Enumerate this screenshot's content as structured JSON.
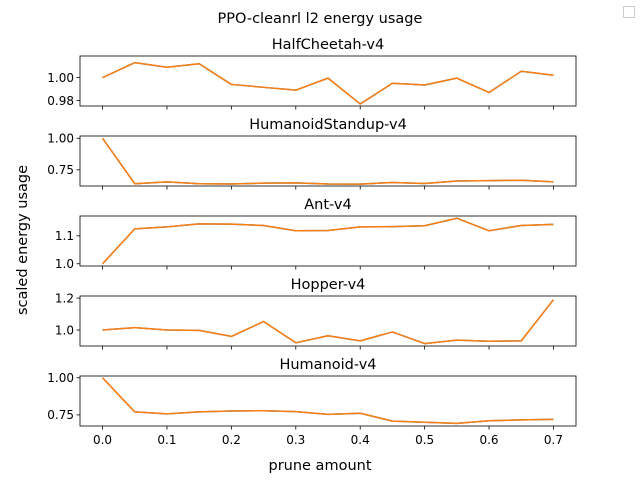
{
  "chart_data": {
    "type": "line",
    "suptitle": "PPO-cleanrl l2 energy usage",
    "xlabel": "prune amount",
    "ylabel": "scaled energy usage",
    "xlim": [
      -0.035,
      0.735
    ],
    "xticks": [
      0.0,
      0.1,
      0.2,
      0.3,
      0.4,
      0.5,
      0.6,
      0.7
    ],
    "xtick_labels": [
      "0.0",
      "0.1",
      "0.2",
      "0.3",
      "0.4",
      "0.5",
      "0.6",
      "0.7"
    ],
    "line_colors": [
      "#1f77b4",
      "#ff7f0e"
    ],
    "legend": "empty box, top-right",
    "x": [
      0.0,
      0.05,
      0.1,
      0.15,
      0.2,
      0.25,
      0.3,
      0.35,
      0.4,
      0.45,
      0.5,
      0.55,
      0.6,
      0.65,
      0.7
    ],
    "subplots": [
      {
        "title": "HalfCheetah-v4",
        "ylim": [
          0.9752,
          1.0188
        ],
        "yticks": [
          0.98,
          1.0
        ],
        "ytick_labels": [
          "0.98",
          "1.00"
        ],
        "values": [
          1.0,
          1.013,
          1.009,
          1.012,
          0.994,
          0.9915,
          0.989,
          0.9995,
          0.977,
          0.995,
          0.9935,
          0.9995,
          0.987,
          1.0055,
          1.002
        ]
      },
      {
        "title": "HumanoidStandup-v4",
        "ylim": [
          0.622,
          1.018
        ],
        "yticks": [
          0.75,
          1.0
        ],
        "ytick_labels": [
          "0.75",
          "1.00"
        ],
        "values": [
          1.0,
          0.64,
          0.655,
          0.64,
          0.638,
          0.645,
          0.647,
          0.638,
          0.637,
          0.65,
          0.642,
          0.662,
          0.665,
          0.668,
          0.655
        ]
      },
      {
        "title": "Ant-v4",
        "ylim": [
          0.992,
          1.171
        ],
        "yticks": [
          1.0,
          1.1
        ],
        "ytick_labels": [
          "1.0",
          "1.1"
        ],
        "values": [
          1.0,
          1.125,
          1.132,
          1.143,
          1.142,
          1.137,
          1.118,
          1.119,
          1.132,
          1.133,
          1.136,
          1.163,
          1.118,
          1.137,
          1.141
        ]
      },
      {
        "title": "Hopper-v4",
        "ylim": [
          0.9,
          1.213
        ],
        "yticks": [
          1.0,
          1.2
        ],
        "ytick_labels": [
          "1.0",
          "1.2"
        ],
        "values": [
          1.0,
          1.015,
          1.0,
          0.998,
          0.96,
          1.053,
          0.92,
          0.964,
          0.932,
          0.988,
          0.915,
          0.937,
          0.93,
          0.932,
          1.19
        ]
      },
      {
        "title": "Humanoid-v4",
        "ylim": [
          0.675,
          1.012
        ],
        "yticks": [
          0.75,
          1.0
        ],
        "ytick_labels": [
          "0.75",
          "1.00"
        ],
        "values": [
          1.0,
          0.77,
          0.757,
          0.77,
          0.776,
          0.778,
          0.772,
          0.753,
          0.761,
          0.708,
          0.7,
          0.693,
          0.71,
          0.716,
          0.72
        ]
      }
    ]
  }
}
